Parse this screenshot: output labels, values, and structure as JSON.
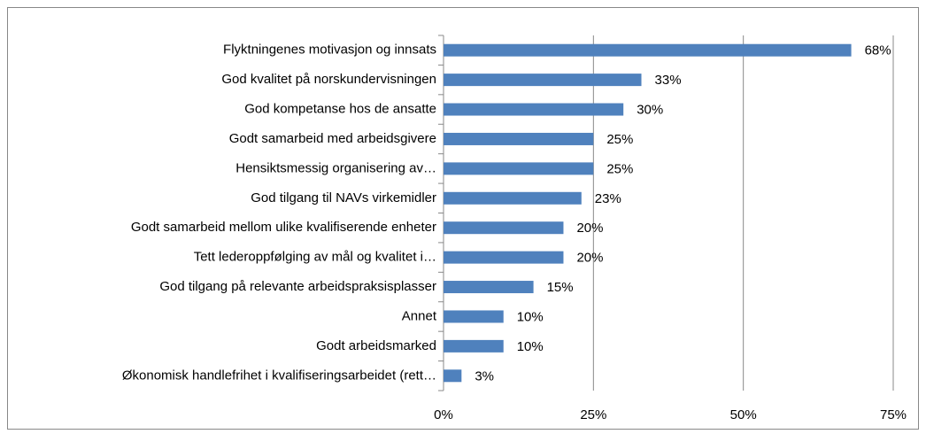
{
  "chart_data": {
    "type": "bar",
    "orientation": "horizontal",
    "categories": [
      "Flyktningenes motivasjon og innsats",
      "God kvalitet på norskundervisningen",
      "God kompetanse hos de ansatte",
      "Godt samarbeid med arbeidsgivere",
      "Hensiktsmessig organisering av…",
      "God tilgang til NAVs virkemidler",
      "Godt samarbeid mellom ulike kvalifiserende enheter",
      "Tett lederoppfølging av mål og kvalitet i…",
      "God tilgang på relevante arbeidspraksisplasser",
      "Annet",
      "Godt arbeidsmarked",
      "Økonomisk handlefrihet i kvalifiseringsarbeidet (rett…"
    ],
    "values": [
      68,
      33,
      30,
      25,
      25,
      23,
      20,
      20,
      15,
      10,
      10,
      3
    ],
    "value_labels": [
      "68%",
      "33%",
      "30%",
      "25%",
      "25%",
      "23%",
      "20%",
      "20%",
      "15%",
      "10%",
      "10%",
      "3%"
    ],
    "color": "#4f81bd",
    "xlim": [
      0,
      75
    ],
    "xticks": [
      {
        "value": 0,
        "label": "0%"
      },
      {
        "value": 25,
        "label": "25%"
      },
      {
        "value": 50,
        "label": "50%"
      },
      {
        "value": 75,
        "label": "75%"
      }
    ],
    "grid": true
  }
}
